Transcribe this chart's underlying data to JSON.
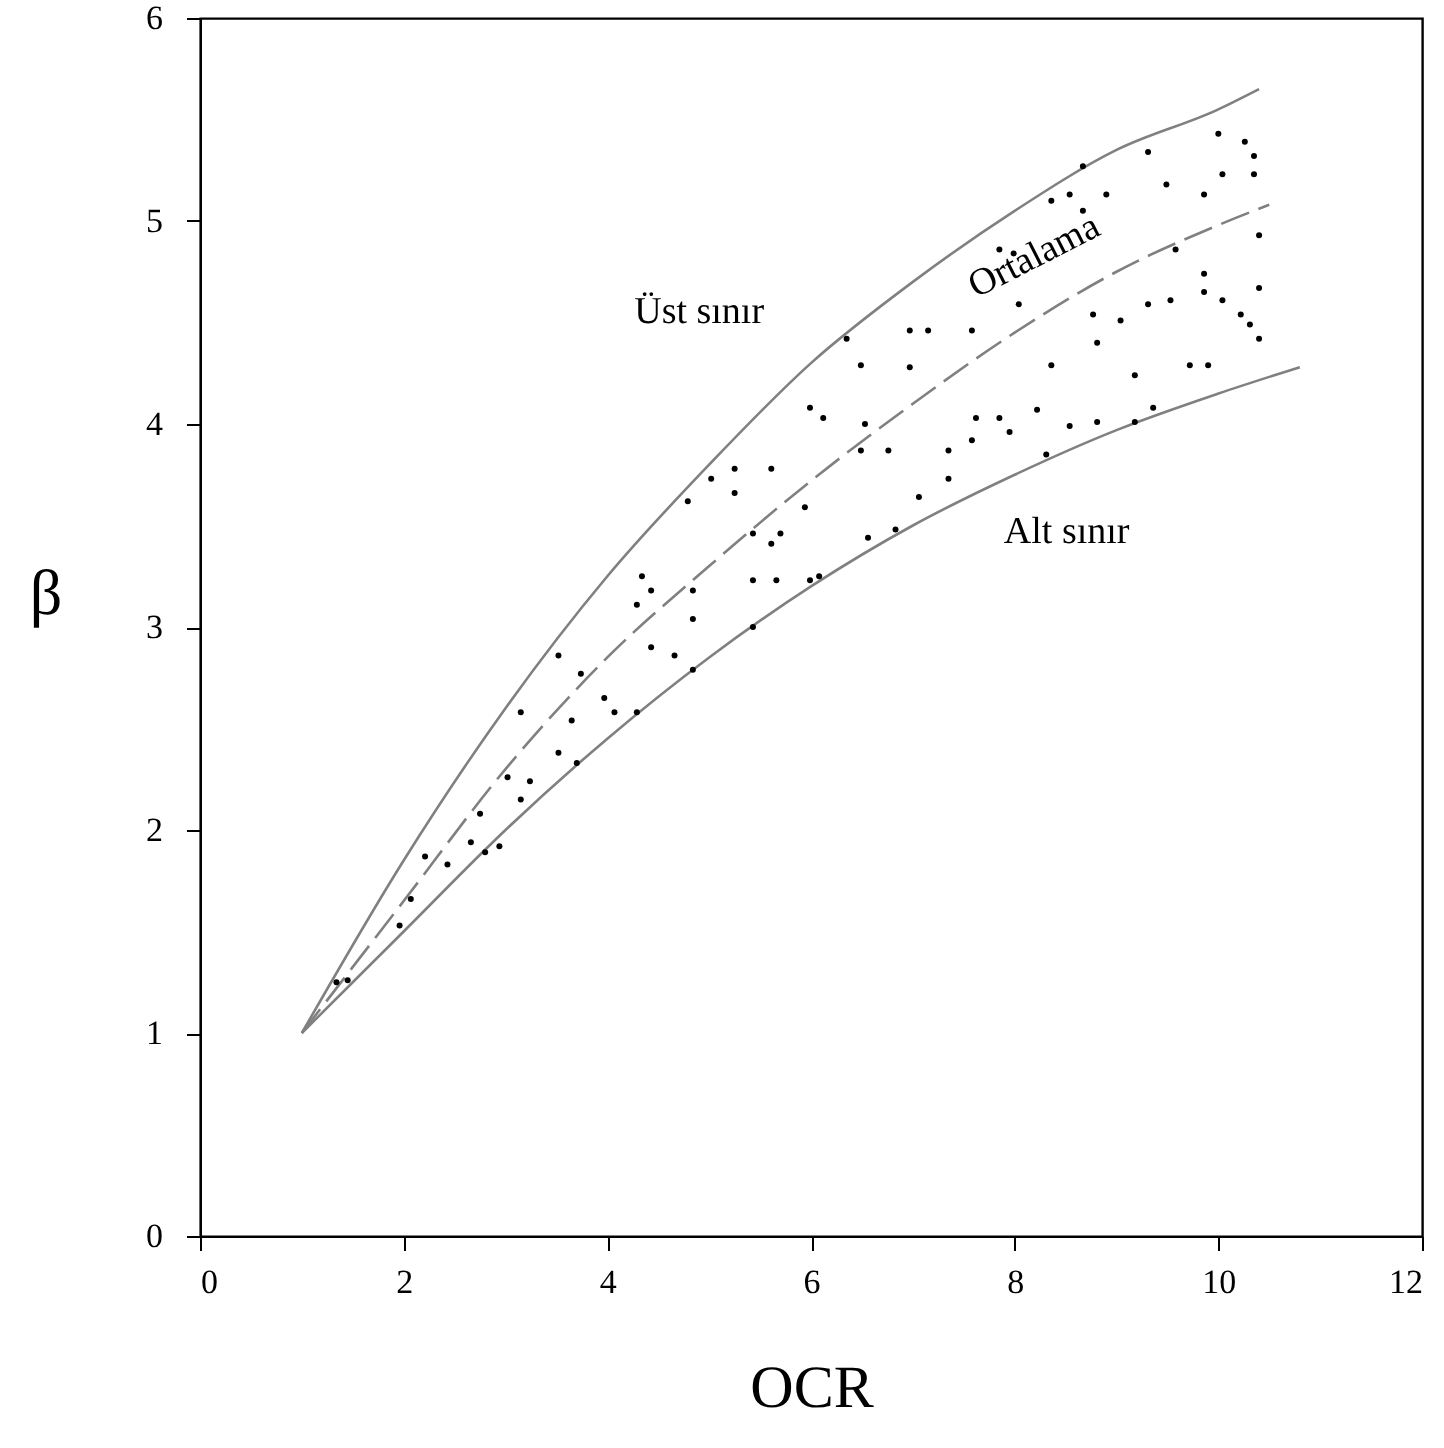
{
  "chart_data": {
    "type": "line",
    "xlabel": "OCR",
    "ylabel": "β",
    "xlim": [
      0,
      12
    ],
    "ylim": [
      0,
      6
    ],
    "xticks": [
      0,
      2,
      4,
      6,
      8,
      10,
      12
    ],
    "yticks": [
      0,
      1,
      2,
      3,
      4,
      5,
      6
    ],
    "grid": false,
    "series": [
      {
        "name": "Üst sınır",
        "color": "#808080",
        "line_style": "solid",
        "x": [
          1,
          2,
          3,
          4,
          5,
          6,
          7,
          8,
          9,
          10,
          10.4
        ],
        "values": [
          1,
          1.85,
          2.6,
          3.25,
          3.8,
          4.3,
          4.7,
          5.05,
          5.35,
          5.55,
          5.65
        ]
      },
      {
        "name": "Alt sınır",
        "color": "#808080",
        "line_style": "solid",
        "x": [
          1,
          2,
          3,
          4,
          5,
          6,
          7,
          8,
          9,
          10,
          10.8
        ],
        "values": [
          1,
          1.5,
          2.0,
          2.45,
          2.85,
          3.2,
          3.5,
          3.75,
          3.97,
          4.15,
          4.28
        ]
      },
      {
        "name": "Ortalama",
        "color": "#808080",
        "line_style": "dashed",
        "x": [
          1,
          2,
          3,
          4,
          5,
          6,
          7,
          8,
          9,
          10,
          10.5
        ],
        "values": [
          1,
          1.65,
          2.3,
          2.85,
          3.3,
          3.72,
          4.1,
          4.45,
          4.75,
          4.98,
          5.08
        ]
      },
      {
        "type": "scatter",
        "color": "#000000",
        "marker": "circle",
        "x": [
          1.34,
          1.45,
          2.07,
          1.96,
          2.21,
          2.43,
          2.66,
          2.8,
          2.94,
          2.75,
          3.02,
          3.15,
          3.24,
          3.15,
          3.52,
          3.52,
          3.7,
          3.65,
          3.74,
          3.97,
          4.07,
          4.29,
          4.34,
          4.43,
          4.29,
          4.43,
          4.66,
          4.84,
          4.84,
          4.84,
          4.79,
          5.02,
          5.25,
          5.25,
          5.61,
          5.43,
          5.61,
          5.7,
          5.43,
          5.66,
          5.43,
          5.99,
          6.08,
          5.94,
          5.99,
          6.12,
          6.35,
          6.49,
          6.49,
          6.53,
          6.76,
          6.56,
          6.83,
          7.06,
          6.97,
          7.15,
          6.97,
          7.35,
          7.35,
          7.58,
          7.62,
          7.58,
          7.85,
          7.99,
          7.85,
          7.95,
          8.04,
          8.22,
          8.36,
          8.31,
          8.36,
          8.54,
          8.67,
          8.9,
          8.67,
          8.77,
          8.81,
          8.54,
          8.81,
          9.04,
          9.18,
          9.18,
          9.36,
          9.31,
          9.49,
          9.31,
          9.53,
          9.58,
          9.72,
          9.9,
          9.86,
          10.0,
          9.86,
          9.86,
          10.04,
          10.22,
          10.31,
          10.26,
          10.35,
          10.35,
          10.4,
          10.4,
          10.4,
          10.04
        ],
        "values": [
          1.25,
          1.26,
          1.66,
          1.53,
          1.87,
          1.83,
          1.94,
          1.89,
          1.92,
          2.08,
          2.26,
          2.15,
          2.24,
          2.58,
          2.86,
          2.38,
          2.33,
          2.54,
          2.77,
          2.65,
          2.58,
          2.58,
          3.25,
          3.18,
          3.11,
          2.9,
          2.86,
          2.79,
          3.04,
          3.18,
          3.62,
          3.73,
          3.78,
          3.66,
          3.78,
          3.46,
          3.41,
          3.46,
          3.23,
          3.23,
          3.0,
          3.23,
          3.25,
          3.59,
          4.08,
          4.03,
          4.42,
          4.29,
          3.87,
          4.0,
          3.87,
          3.44,
          3.48,
          3.64,
          4.46,
          4.46,
          4.28,
          3.73,
          3.87,
          3.92,
          4.03,
          4.46,
          4.86,
          4.84,
          4.03,
          3.96,
          4.59,
          4.07,
          4.29,
          3.85,
          5.1,
          5.13,
          5.27,
          5.13,
          5.05,
          4.54,
          4.4,
          3.99,
          4.01,
          4.51,
          4.24,
          4.01,
          4.08,
          5.34,
          5.18,
          4.59,
          4.61,
          4.86,
          4.29,
          4.29,
          5.13,
          5.43,
          4.74,
          4.65,
          4.61,
          4.54,
          4.49,
          5.39,
          5.32,
          5.23,
          4.93,
          4.67,
          4.42,
          5.23
        ]
      }
    ]
  }
}
